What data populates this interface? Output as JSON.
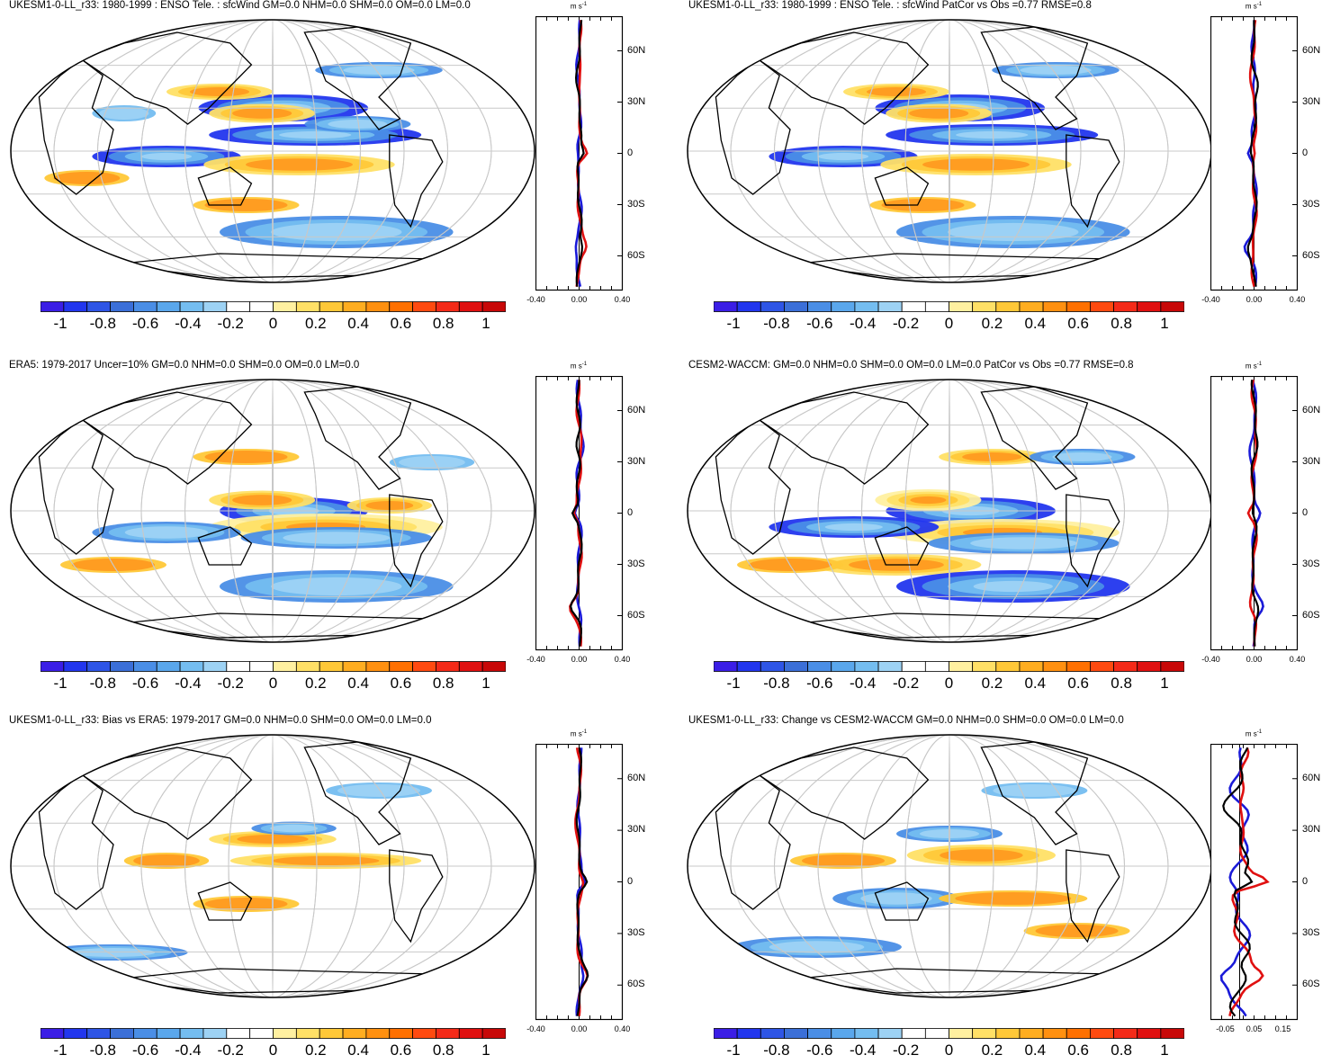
{
  "figure": {
    "variable": "sfcWind",
    "colorbar_colors": [
      "#3b1ee6",
      "#2236ee",
      "#2e55e6",
      "#3b6fd8",
      "#4a8ee6",
      "#5aa7ec",
      "#74bdf0",
      "#9dd2f4",
      "#ffffff",
      "#ffffff",
      "#fff0a0",
      "#ffe066",
      "#ffc838",
      "#ffad20",
      "#ff9010",
      "#ff7000",
      "#ff4a10",
      "#f42a18",
      "#e01010",
      "#c80808"
    ],
    "colorbar_ticks": [
      "-1",
      "-0.8",
      "-0.6",
      "-0.4",
      "-0.2",
      "0",
      "0.2",
      "0.4",
      "0.6",
      "0.8",
      "1"
    ],
    "latitude_labels": [
      "60N",
      "30N",
      "0",
      "30S",
      "60S"
    ],
    "profile_unit": "m s",
    "profile_unit_exp": "-1",
    "line_colors": {
      "ensemble_a": "#e01010",
      "ensemble_b": "#1a1ad8",
      "mean": "#000000"
    }
  },
  "panels": [
    {
      "id": "p1",
      "title": "UKESM1-0-LL_r33: 1980-1999 : ENSO Tele. : sfcWind GM=0.0 NHM=0.0 SHM=0.0 OM=0.0 LM=0.0",
      "profile_xticks": [
        "-0.40",
        "0.00",
        "0.40"
      ],
      "profile_xrange": [
        -0.4,
        0.4
      ]
    },
    {
      "id": "p2",
      "title": "UKESM1-0-LL_r33: 1980-1999 : ENSO Tele. : sfcWind PatCor vs Obs =0.77 RMSE=0.8",
      "profile_xticks": [
        "-0.40",
        "0.00",
        "0.40"
      ],
      "profile_xrange": [
        -0.4,
        0.4
      ]
    },
    {
      "id": "p3",
      "title": "ERA5: 1979-2017 Uncer=10% GM=0.0 NHM=0.0 SHM=0.0 OM=0.0 LM=0.0",
      "profile_xticks": [
        "-0.40",
        "0.00",
        "0.40"
      ],
      "profile_xrange": [
        -0.4,
        0.4
      ]
    },
    {
      "id": "p4",
      "title": "CESM2-WACCM: GM=0.0 NHM=0.0 SHM=0.0 OM=0.0 LM=0.0 PatCor vs Obs =0.77 RMSE=0.8",
      "profile_xticks": [
        "-0.40",
        "0.00",
        "0.40"
      ],
      "profile_xrange": [
        -0.4,
        0.4
      ]
    },
    {
      "id": "p5",
      "title": "UKESM1-0-LL_r33: Bias vs ERA5: 1979-2017 GM=0.0 NHM=0.0 SHM=0.0 OM=0.0 LM=0.0",
      "profile_xticks": [
        "-0.40",
        "0.00",
        "0.40"
      ],
      "profile_xrange": [
        -0.4,
        0.4
      ]
    },
    {
      "id": "p6",
      "title": "UKESM1-0-LL_r33: Change vs CESM2-WACCM GM=0.0 NHM=0.0 SHM=0.0 OM=0.0 LM=0.0",
      "profile_xticks": [
        "-0.05",
        "0.05",
        "0.15"
      ],
      "profile_xrange": [
        -0.1,
        0.2
      ]
    }
  ]
}
